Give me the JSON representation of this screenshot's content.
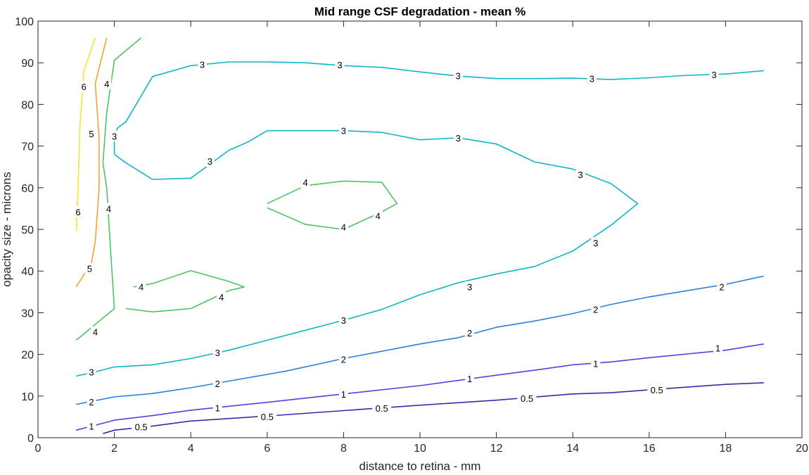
{
  "chart_data": {
    "type": "contour",
    "title": "Mid range CSF degradation - mean %",
    "xlabel": "distance to retina - mm",
    "ylabel": "opacity size - microns",
    "xlim": [
      0,
      20
    ],
    "ylim": [
      0,
      100
    ],
    "xticks": [
      "0",
      "2",
      "4",
      "6",
      "8",
      "10",
      "12",
      "14",
      "16",
      "18",
      "20"
    ],
    "yticks": [
      "0",
      "10",
      "20",
      "30",
      "40",
      "50",
      "60",
      "70",
      "80",
      "90",
      "100"
    ],
    "grid": false,
    "levels": [
      {
        "level": "0.5",
        "color": "#3d26a8",
        "lines": [
          [
            [
              1.7,
              1
            ],
            [
              2,
              1.8
            ],
            [
              3,
              2.8
            ],
            [
              4,
              4
            ],
            [
              6,
              5.2
            ],
            [
              8,
              6.5
            ],
            [
              10,
              7.8
            ],
            [
              12,
              9
            ],
            [
              14,
              10.5
            ],
            [
              15,
              10.8
            ],
            [
              16,
              11.5
            ],
            [
              18,
              12.8
            ],
            [
              19,
              13.2
            ]
          ]
        ],
        "labels": [
          [
            2.7,
            2.6
          ],
          [
            6,
            5.1
          ],
          [
            9,
            7.1
          ],
          [
            12.8,
            9.5
          ],
          [
            16.2,
            11.5
          ]
        ]
      },
      {
        "level": "1",
        "color": "#4a45e0",
        "lines": [
          [
            [
              1,
              1.8
            ],
            [
              2,
              4.2
            ],
            [
              3,
              5.3
            ],
            [
              4,
              6.6
            ],
            [
              6,
              8.5
            ],
            [
              8,
              10.5
            ],
            [
              10,
              12.5
            ],
            [
              12,
              15
            ],
            [
              13,
              16.2
            ],
            [
              14,
              17.5
            ],
            [
              15,
              18.2
            ],
            [
              16,
              19.2
            ],
            [
              18,
              21
            ],
            [
              19,
              22.5
            ]
          ]
        ],
        "labels": [
          [
            1.4,
            2.8
          ],
          [
            4.7,
            7.2
          ],
          [
            8,
            10.5
          ],
          [
            11.3,
            14.2
          ],
          [
            14.6,
            17.8
          ],
          [
            17.8,
            21.5
          ]
        ]
      },
      {
        "level": "2",
        "color": "#2c7fde",
        "lines": [
          [
            [
              1,
              8
            ],
            [
              2,
              9.8
            ],
            [
              3,
              10.6
            ],
            [
              4,
              12
            ],
            [
              5,
              13.6
            ],
            [
              6.5,
              16
            ],
            [
              8,
              19
            ],
            [
              10,
              22.5
            ],
            [
              11,
              24
            ],
            [
              12,
              26.5
            ],
            [
              13,
              28
            ],
            [
              14,
              29.8
            ],
            [
              15,
              32
            ],
            [
              16,
              33.8
            ],
            [
              18,
              36.8
            ],
            [
              19,
              38.8
            ]
          ]
        ],
        "labels": [
          [
            1.4,
            8.6
          ],
          [
            4.7,
            13
          ],
          [
            8,
            18.8
          ],
          [
            11.3,
            25.2
          ],
          [
            14.6,
            30.8
          ],
          [
            17.9,
            36.2
          ]
        ]
      },
      {
        "level": "3",
        "color": "#11b5c9",
        "lines": [
          [
            [
              1,
              14.8
            ],
            [
              1.5,
              15.8
            ],
            [
              2,
              17
            ],
            [
              3,
              17.5
            ],
            [
              4,
              19
            ],
            [
              5,
              21
            ],
            [
              6,
              23.4
            ],
            [
              7,
              25.8
            ],
            [
              8,
              28.2
            ],
            [
              9,
              30.8
            ],
            [
              10,
              34.3
            ],
            [
              11,
              37.2
            ],
            [
              12,
              39.3
            ],
            [
              13,
              41.1
            ],
            [
              14,
              44.8
            ],
            [
              15,
              51
            ],
            [
              15.7,
              56.2
            ],
            [
              15,
              61
            ],
            [
              14,
              64.5
            ],
            [
              13,
              66.2
            ],
            [
              12,
              70.5
            ],
            [
              11,
              72
            ],
            [
              10,
              71.5
            ],
            [
              9,
              73.3
            ],
            [
              8,
              73.7
            ],
            [
              7,
              73.7
            ],
            [
              6,
              73.7
            ],
            [
              5.5,
              71
            ],
            [
              5,
              69
            ],
            [
              4,
              62.3
            ],
            [
              3,
              62
            ],
            [
              2.3,
              66
            ],
            [
              2,
              68
            ],
            [
              2,
              73
            ],
            [
              2.1,
              74.5
            ],
            [
              2.3,
              75.8
            ],
            [
              3,
              86.7
            ],
            [
              4,
              89.3
            ],
            [
              5,
              90.2
            ],
            [
              6,
              90.2
            ],
            [
              7,
              90
            ],
            [
              8,
              89.3
            ],
            [
              9,
              88.9
            ],
            [
              10,
              87.8
            ],
            [
              11,
              86.8
            ],
            [
              12,
              86.2
            ],
            [
              13,
              86.2
            ],
            [
              14,
              86.3
            ],
            [
              15,
              86
            ],
            [
              16,
              86.4
            ],
            [
              17,
              87
            ],
            [
              18,
              87.3
            ],
            [
              19,
              88.1
            ]
          ]
        ],
        "labels": [
          [
            1.4,
            15.8
          ],
          [
            4.7,
            20.4
          ],
          [
            8,
            28.2
          ],
          [
            11.3,
            36.2
          ],
          [
            14.6,
            46.8
          ],
          [
            14.2,
            63.2
          ],
          [
            11,
            72
          ],
          [
            8,
            73.7
          ],
          [
            4.5,
            66.4
          ],
          [
            2,
            72.4
          ],
          [
            4.3,
            89.6
          ],
          [
            7.9,
            89.5
          ],
          [
            11,
            86.9
          ],
          [
            14.5,
            86.2
          ],
          [
            17.7,
            87.2
          ]
        ]
      },
      {
        "level": "4",
        "color": "#4ec35f",
        "lines": [
          [
            [
              1,
              23.4
            ],
            [
              2,
              31
            ],
            [
              1.9,
              45
            ],
            [
              1.8,
              60
            ],
            [
              1.7,
              66
            ],
            [
              1.8,
              78
            ],
            [
              2,
              90.6
            ],
            [
              2.7,
              96
            ]
          ],
          [
            [
              2.5,
              36.2
            ],
            [
              3,
              37
            ],
            [
              4,
              40.1
            ],
            [
              5,
              37.5
            ],
            [
              5.4,
              36.2
            ],
            [
              5,
              35.3
            ],
            [
              4,
              31
            ],
            [
              3,
              30.2
            ],
            [
              2.3,
              31
            ]
          ],
          [
            [
              6,
              56.2
            ],
            [
              7,
              60.5
            ],
            [
              8,
              61.6
            ],
            [
              9,
              61.3
            ],
            [
              9.4,
              56.2
            ],
            [
              9,
              54.2
            ],
            [
              8,
              50
            ],
            [
              7,
              51.2
            ],
            [
              6,
              55.2
            ]
          ]
        ],
        "labels": [
          [
            1.5,
            25.4
          ],
          [
            1.85,
            55
          ],
          [
            1.8,
            85
          ],
          [
            2.7,
            36.2
          ],
          [
            4.8,
            33.8
          ],
          [
            7,
            61.3
          ],
          [
            8,
            50.6
          ],
          [
            8.9,
            53.3
          ]
        ]
      },
      {
        "level": "5",
        "color": "#f3a135",
        "lines": [
          [
            [
              1,
              36.2
            ],
            [
              1.4,
              42
            ],
            [
              1.5,
              47
            ],
            [
              1.6,
              60
            ],
            [
              1.6,
              72
            ],
            [
              1.5,
              85
            ],
            [
              1.8,
              96
            ]
          ]
        ],
        "labels": [
          [
            1.35,
            40.6
          ],
          [
            1.4,
            73
          ]
        ]
      },
      {
        "level": "6",
        "color": "#f7e52b",
        "lines": [
          [
            [
              1,
              49.6
            ],
            [
              1.05,
              60
            ],
            [
              1.1,
              75
            ],
            [
              1.2,
              88
            ],
            [
              1.5,
              96
            ]
          ]
        ],
        "labels": [
          [
            1.05,
            54.2
          ],
          [
            1.2,
            84.3
          ]
        ]
      }
    ]
  }
}
